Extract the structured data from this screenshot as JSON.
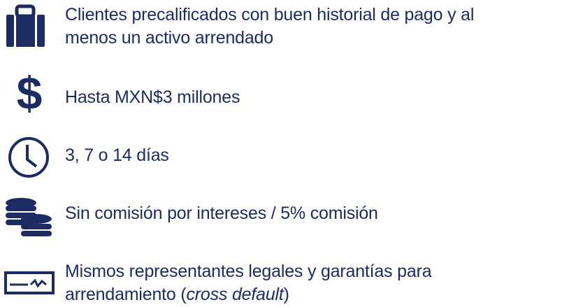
{
  "items": [
    {
      "lines": [
        "Clientes precalificados con buen historial de pago y al",
        "menos un activo arrendado"
      ]
    },
    {
      "lines": [
        "Hasta MXN$3 millones"
      ]
    },
    {
      "lines": [
        "3, 7 o 14 días"
      ]
    },
    {
      "lines": [
        "Sin comisión por intereses / 5% comisión"
      ]
    },
    {
      "lines": [
        "Mismos representantes legales y garantías para"
      ],
      "last_line": [
        "arrendamiento (",
        "cross default",
        ")"
      ]
    }
  ]
}
